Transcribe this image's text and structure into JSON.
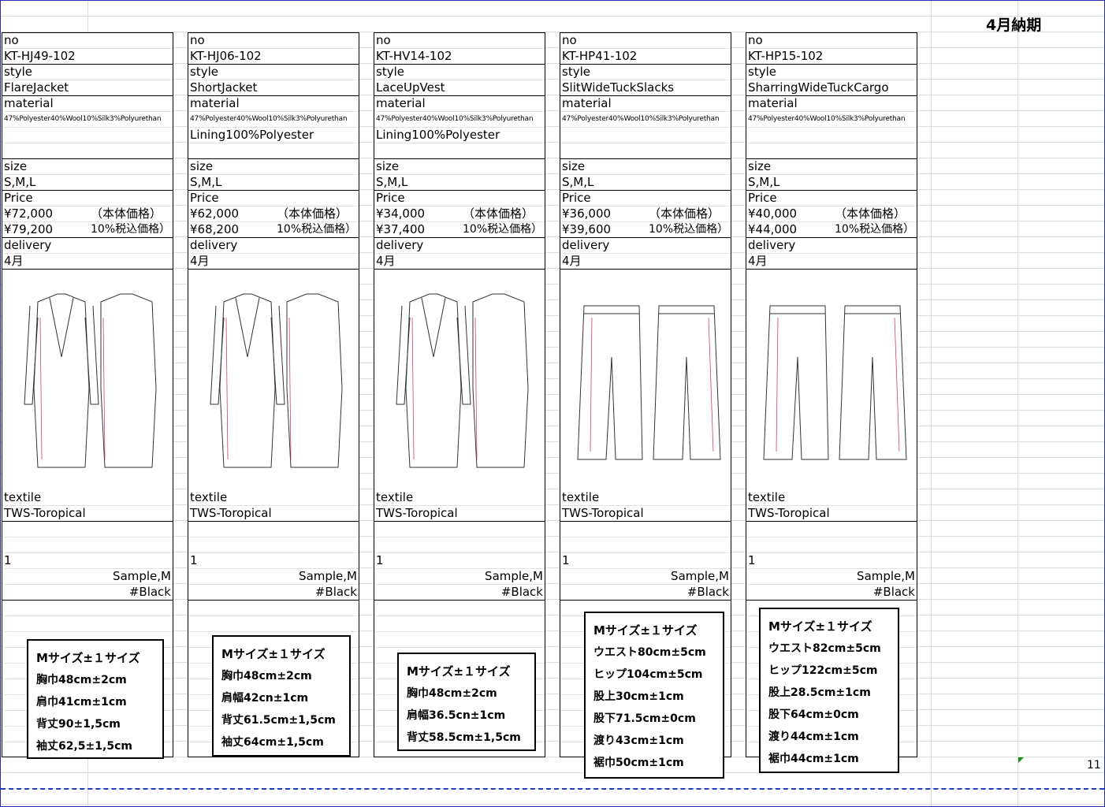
{
  "header": {
    "title": "4月納期",
    "page_number": "11"
  },
  "products": [
    {
      "no_label": "no",
      "no": "KT-HJ49-102",
      "style_label": "style",
      "style": "FlareJacket",
      "material_label": "material",
      "material": "47%Polyester40%Wool10%Silk3%Polyurethan",
      "size_label": "size",
      "size": "S,M,L",
      "price_label": "Price",
      "price": "¥72,000",
      "price_note": "（本体価格）",
      "price_tax": "¥79,200",
      "price_tax_note": "10%税込価格）",
      "delivery_label": "delivery",
      "delivery": "4月",
      "textile_label": "textile",
      "textile": "TWS-Toropical",
      "quantity": "1",
      "sample": "Sample,M",
      "color": "#Black",
      "spec": {
        "title": "Mサイズ±１サイズ",
        "lines": [
          "胸巾48cm±2cm",
          "肩巾41cm±1cm",
          "背丈90±1,5cm",
          "袖丈62,5±1,5cm"
        ]
      }
    },
    {
      "no_label": "no",
      "no": "KT-HJ06-102",
      "style_label": "style",
      "style": "ShortJacket",
      "material_label": "material",
      "material": "47%Polyester40%Wool10%Silk3%Polyurethan",
      "lining": "Lining100%Polyester",
      "size_label": "size",
      "size": "S,M,L",
      "price_label": "Price",
      "price": "¥62,000",
      "price_note": "（本体価格）",
      "price_tax": "¥68,200",
      "price_tax_note": "10%税込価格）",
      "delivery_label": "delivery",
      "delivery": "4月",
      "textile_label": "textile",
      "textile": "TWS-Toropical",
      "quantity": "1",
      "sample": "Sample,M",
      "color": "#Black",
      "spec": {
        "title": "Mサイズ±１サイズ",
        "lines": [
          "胸巾48cm±2cm",
          "肩幅42cn±1cm",
          "背丈61.5cm±1,5cm",
          "袖丈64cm±1,5cm"
        ]
      }
    },
    {
      "no_label": "no",
      "no": "KT-HV14-102",
      "style_label": "style",
      "style": "LaceUpVest",
      "material_label": "material",
      "material": "47%Polyester40%Wool10%Silk3%Polyurethan",
      "lining": "Lining100%Polyester",
      "size_label": "size",
      "size": "S,M,L",
      "price_label": "Price",
      "price": "¥34,000",
      "price_note": "（本体価格）",
      "price_tax": "¥37,400",
      "price_tax_note": "10%税込価格）",
      "delivery_label": "delivery",
      "delivery": "4月",
      "textile_label": "textile",
      "textile": "TWS-Toropical",
      "quantity": "1",
      "sample": "Sample,M",
      "color": "#Black",
      "spec": {
        "title": "Mサイズ±１サイズ",
        "lines": [
          "胸巾48cm±2cm",
          "肩幅36.5cn±1cm",
          "背丈58.5cm±1,5cm"
        ]
      }
    },
    {
      "no_label": "no",
      "no": "KT-HP41-102",
      "style_label": "style",
      "style": "SlitWideTuckSlacks",
      "material_label": "material",
      "material": "47%Polyester40%Wool10%Silk3%Polyurethan",
      "size_label": "size",
      "size": "S,M,L",
      "price_label": "Price",
      "price": "¥36,000",
      "price_note": "（本体価格）",
      "price_tax": "¥39,600",
      "price_tax_note": "10%税込価格）",
      "delivery_label": "delivery",
      "delivery": "4月",
      "textile_label": "textile",
      "textile": "TWS-Toropical",
      "quantity": "1",
      "sample": "Sample,M",
      "color": "#Black",
      "spec": {
        "title": "Mサイズ±１サイズ",
        "lines": [
          "ウエスト80cm±5cm",
          "ヒップ104cm±5cm",
          "股上30cm±1cm",
          "股下71.5cm±0cm",
          "渡り43cm±1cm",
          "裾巾50cm±1cm"
        ]
      }
    },
    {
      "no_label": "no",
      "no": "KT-HP15-102",
      "style_label": "style",
      "style": "SharringWideTuckCargo",
      "material_label": "material",
      "material": "47%Polyester40%Wool10%Silk3%Polyurethan",
      "size_label": "size",
      "size": "S,M,L",
      "price_label": "Price",
      "price": "¥40,000",
      "price_note": "（本体価格）",
      "price_tax": "¥44,000",
      "price_tax_note": "10%税込価格）",
      "delivery_label": "delivery",
      "delivery": "4月",
      "textile_label": "textile",
      "textile": "TWS-Toropical",
      "quantity": "1",
      "sample": "Sample,M",
      "color": "#Black",
      "spec": {
        "title": "Mサイズ±１サイズ",
        "lines": [
          "ウエスト82cm±5cm",
          "ヒップ122cm±5cm",
          "股上28.5cm±1cm",
          "股下64cm±0cm",
          "渡り44cm±1cm",
          "裾巾44cm±1cm"
        ]
      }
    }
  ]
}
